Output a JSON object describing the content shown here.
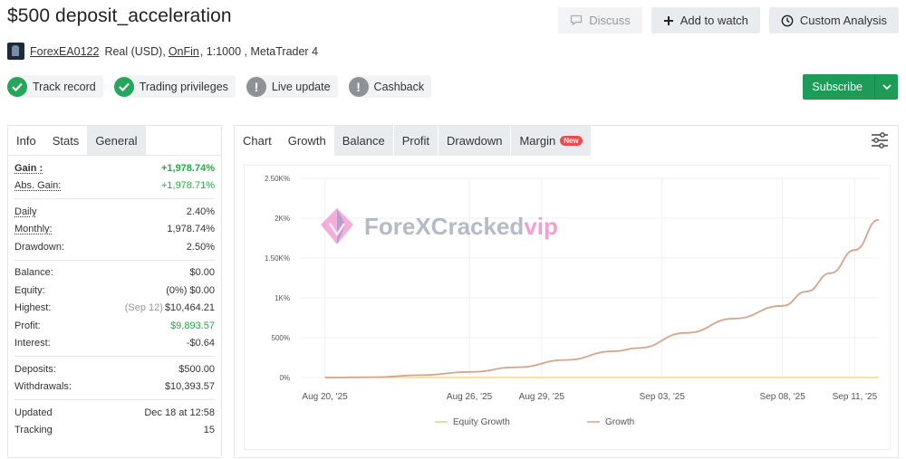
{
  "header": {
    "title": "$500 deposit_acceleration",
    "discuss_label": "Discuss",
    "watch_label": "Add to watch",
    "analysis_label": "Custom Analysis"
  },
  "meta": {
    "author": "ForexEA0122",
    "account": "Real (USD),",
    "broker": "OnFin",
    "leverage": ", 1:1000 , MetaTrader 4"
  },
  "badges": [
    {
      "label": "Track record",
      "status": "ok"
    },
    {
      "label": "Trading privileges",
      "status": "ok"
    },
    {
      "label": "Live update",
      "status": "warn"
    },
    {
      "label": "Cashback",
      "status": "warn"
    }
  ],
  "subscribe_label": "Subscribe",
  "left_tabs": [
    "Info",
    "Stats",
    "General"
  ],
  "stats": {
    "gain": {
      "label": "Gain :",
      "value": "+1,978.74%"
    },
    "abs_gain": {
      "label": "Abs. Gain:",
      "value": "+1,978.71%"
    },
    "daily": {
      "label": "Daily",
      "value": "2.40%"
    },
    "monthly": {
      "label": "Monthly:",
      "value": "1,978.74%"
    },
    "drawdown": {
      "label": "Drawdown:",
      "value": "2.50%"
    },
    "balance": {
      "label": "Balance:",
      "value": "$0.00"
    },
    "equity": {
      "label": "Equity:",
      "value": "(0%) $0.00"
    },
    "highest": {
      "label": "Highest:",
      "date": "(Sep 12)",
      "value": "$10,464.21"
    },
    "profit": {
      "label": "Profit:",
      "value": "$9,893.57"
    },
    "interest": {
      "label": "Interest:",
      "value": "-$0.64"
    },
    "deposits": {
      "label": "Deposits:",
      "value": "$500.00"
    },
    "withdrawals": {
      "label": "Withdrawals:",
      "value": "$10,393.57"
    },
    "updated": {
      "label": "Updated",
      "value": "Dec 18 at 12:58"
    },
    "tracking": {
      "label": "Tracking",
      "value": "15"
    }
  },
  "chart_tabs": {
    "chart": "Chart",
    "growth": "Growth",
    "balance": "Balance",
    "profit": "Profit",
    "drawdown": "Drawdown",
    "margin": "Margin",
    "new_badge": "New"
  },
  "watermark": {
    "main": "ForeXCracked",
    "accent": "vip"
  },
  "chart_data": {
    "type": "line",
    "title": "",
    "xlabel": "",
    "ylabel": "",
    "y_tick_labels": [
      "0%",
      "500%",
      "1K%",
      "1.50K%",
      "2K%",
      "2.50K%"
    ],
    "y_ticks": [
      0,
      500,
      1000,
      1500,
      2000,
      2500
    ],
    "ylim": [
      0,
      2500
    ],
    "x_tick_labels": [
      "Aug 20, '25",
      "Aug 26, '25",
      "Aug 29, '25",
      "Sep 03, '25",
      "Sep 08, '25",
      "Sep 11, '25"
    ],
    "x_ticks": [
      "2025-08-20",
      "2025-08-26",
      "2025-08-29",
      "2025-09-03",
      "2025-09-08",
      "2025-09-11"
    ],
    "xlim": [
      "2025-08-19",
      "2025-09-12"
    ],
    "grid": true,
    "legend_position": "bottom",
    "series": [
      {
        "name": "Equity Growth",
        "color": "#e6d47a",
        "x": [
          "2025-08-20",
          "2025-09-12"
        ],
        "y": [
          0,
          0
        ]
      },
      {
        "name": "Growth",
        "color": "#d4a48c",
        "x": [
          "2025-08-20",
          "2025-08-22",
          "2025-08-24",
          "2025-08-26",
          "2025-08-28",
          "2025-08-30",
          "2025-09-01",
          "2025-09-02",
          "2025-09-04",
          "2025-09-06",
          "2025-09-08",
          "2025-09-09",
          "2025-09-10",
          "2025-09-11",
          "2025-09-12"
        ],
        "y": [
          0,
          5,
          30,
          70,
          130,
          220,
          330,
          370,
          560,
          740,
          900,
          1080,
          1310,
          1600,
          1980
        ]
      }
    ]
  }
}
